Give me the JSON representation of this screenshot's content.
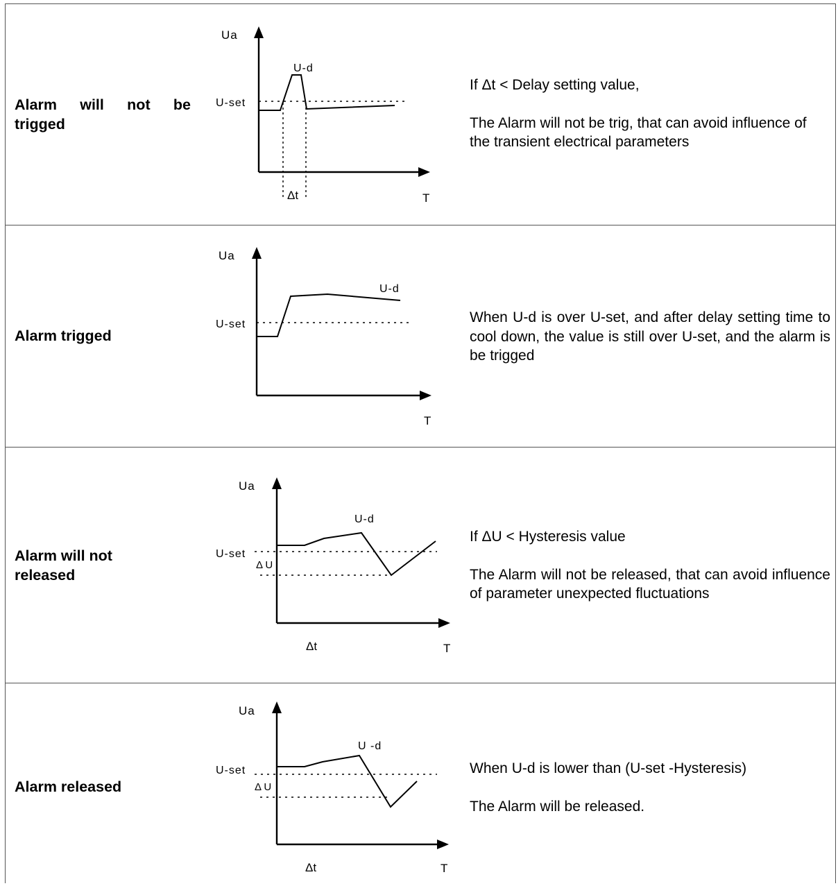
{
  "rows": [
    {
      "label_words": [
        "Alarm",
        "will",
        "not",
        "be"
      ],
      "label_line2": "trigged",
      "desc": [
        "If Δt < Delay setting value,",
        "The Alarm will not be trig, that can avoid influence of the transient electrical parameters"
      ],
      "diagram": {
        "y_axis": "Ua",
        "x_axis": "T",
        "set_label": "U-set",
        "curve_label": "U-d",
        "dt_label": "Δt"
      }
    },
    {
      "label": "Alarm trigged",
      "desc": [
        "When U-d is over U-set, and after delay setting time to cool down, the value is still over U-set, and the alarm is be trigged"
      ],
      "diagram": {
        "y_axis": "Ua",
        "x_axis": "T",
        "set_label": "U-set",
        "curve_label": "U-d"
      }
    },
    {
      "label_line1": "Alarm will not",
      "label_line2": "released",
      "desc": [
        "If ΔU < Hysteresis value",
        "The Alarm will not be released, that can avoid influence of parameter unexpected fluctuations"
      ],
      "diagram": {
        "y_axis": "Ua",
        "x_axis": "T",
        "set_label": "U-set",
        "curve_label": "U-d",
        "du_label": "Δ U",
        "dt_label": "Δt"
      }
    },
    {
      "label": "Alarm released",
      "desc": [
        "When U-d is lower than (U-set -Hysteresis)",
        "The Alarm will be released."
      ],
      "diagram": {
        "y_axis": "Ua",
        "x_axis": "T",
        "set_label": "U-set",
        "curve_label": "U -d",
        "du_label": "Δ U",
        "dt_label": "Δt"
      }
    }
  ]
}
